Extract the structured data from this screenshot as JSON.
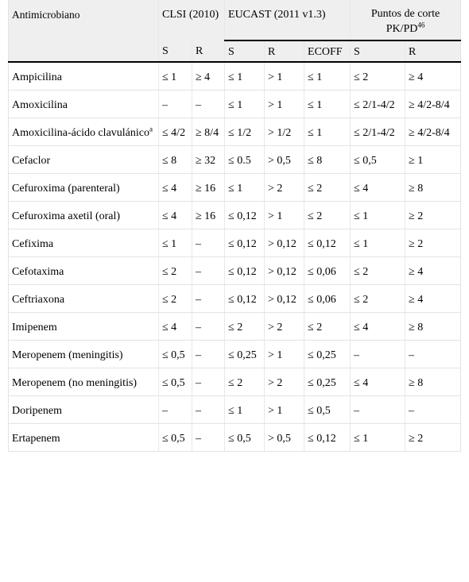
{
  "header": {
    "antimicrobial": "Antimicrobiano",
    "clsi": "CLSI (2010)",
    "eucast": "EUCAST (2011 v1.3)",
    "pkpd_label": "Puntos de corte PK/PD",
    "pkpd_ref": "46",
    "sub": [
      "S",
      "R",
      "S",
      "R",
      "ECOFF",
      "S",
      "R"
    ]
  },
  "rows": [
    {
      "name": "Ampicilina",
      "sup": "",
      "v": [
        "≤ 1",
        "≥ 4",
        "≤ 1",
        "> 1",
        "≤ 1",
        "≤ 2",
        "≥ 4"
      ]
    },
    {
      "name": "Amoxicilina",
      "sup": "",
      "v": [
        "–",
        "–",
        "≤ 1",
        "> 1",
        "≤ 1",
        "≤ 2/1-4/2",
        "≥ 4/2-8/4"
      ]
    },
    {
      "name": "Amoxicilina-ácido clavulánico",
      "sup": "a",
      "v": [
        "≤ 4/2",
        "≥ 8/4",
        "≤ 1/2",
        "> 1/2",
        "≤ 1",
        "≤ 2/1-4/2",
        "≥ 4/2-8/4"
      ]
    },
    {
      "name": "Cefaclor",
      "sup": "",
      "v": [
        "≤ 8",
        "≥ 32",
        "≤ 0.5",
        "> 0,5",
        "≤ 8",
        "≤ 0,5",
        "≥ 1"
      ]
    },
    {
      "name": "Cefuroxima (parenteral)",
      "sup": "",
      "v": [
        "≤ 4",
        "≥ 16",
        "≤ 1",
        "> 2",
        "≤ 2",
        "≤ 4",
        "≥ 8"
      ]
    },
    {
      "name": "Cefuroxima axetil (oral)",
      "sup": "",
      "v": [
        "≤ 4",
        "≥ 16",
        "≤ 0,12",
        "> 1",
        "≤ 2",
        "≤ 1",
        "≥ 2"
      ]
    },
    {
      "name": "Cefixima",
      "sup": "",
      "v": [
        "≤ 1",
        "–",
        "≤ 0,12",
        "> 0,12",
        "≤ 0,12",
        "≤ 1",
        "≥ 2"
      ]
    },
    {
      "name": "Cefotaxima",
      "sup": "",
      "v": [
        "≤ 2",
        "–",
        "≤ 0,12",
        "> 0,12",
        "≤ 0,06",
        "≤ 2",
        "≥ 4"
      ]
    },
    {
      "name": "Ceftriaxona",
      "sup": "",
      "v": [
        "≤ 2",
        "–",
        "≤ 0,12",
        "> 0,12",
        "≤ 0,06",
        "≤ 2",
        "≥ 4"
      ]
    },
    {
      "name": "Imipenem",
      "sup": "",
      "v": [
        "≤ 4",
        "–",
        "≤ 2",
        "> 2",
        "≤ 2",
        "≤ 4",
        "≥ 8"
      ]
    },
    {
      "name": "Meropenem (meningitis)",
      "sup": "",
      "v": [
        "≤ 0,5",
        "–",
        "≤ 0,25",
        "> 1",
        "≤ 0,25",
        "–",
        "–"
      ]
    },
    {
      "name": "Meropenem (no meningitis)",
      "sup": "",
      "v": [
        "≤ 0,5",
        "–",
        "≤ 2",
        "> 2",
        "≤ 0,25",
        "≤ 4",
        "≥ 8"
      ]
    },
    {
      "name": "Doripenem",
      "sup": "",
      "v": [
        "–",
        "–",
        "≤ 1",
        "> 1",
        "≤ 0,5",
        "–",
        "–"
      ]
    },
    {
      "name": "Ertapenem",
      "sup": "",
      "v": [
        "≤ 0,5",
        "–",
        "≤ 0,5",
        "> 0,5",
        "≤ 0,12",
        "≤ 1",
        "≥ 2"
      ]
    }
  ]
}
